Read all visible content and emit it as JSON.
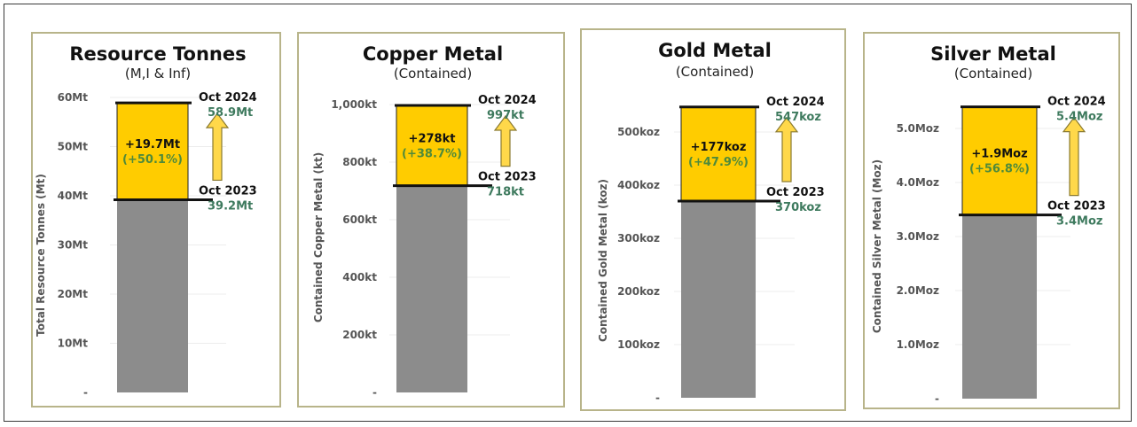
{
  "chart_data": [
    {
      "type": "bar",
      "title": "Resource Tonnes",
      "subtitle": "(M,I & Inf)",
      "ylabel": "Total Resource Tonnes (Mt)",
      "ylim": [
        0,
        60
      ],
      "yticks": [
        "-",
        "10Mt",
        "20Mt",
        "30Mt",
        "40Mt",
        "50Mt",
        "60Mt"
      ],
      "series": [
        {
          "name": "Oct 2023",
          "value": 39.2,
          "label": "39.2Mt",
          "color": "#8c8c8c"
        },
        {
          "name": "Oct 2024",
          "value": 58.9,
          "label": "58.9Mt",
          "color": "#ffcc00"
        }
      ],
      "increase_label": "+19.7Mt",
      "increase_pct": "(+50.1%)"
    },
    {
      "type": "bar",
      "title": "Copper Metal",
      "subtitle": "(Contained)",
      "ylabel": "Contained Copper Metal (kt)",
      "ylim": [
        0,
        1000
      ],
      "yticks": [
        "-",
        "200kt",
        "400kt",
        "600kt",
        "800kt",
        "1,000kt"
      ],
      "series": [
        {
          "name": "Oct 2023",
          "value": 718,
          "label": "718kt",
          "color": "#8c8c8c"
        },
        {
          "name": "Oct 2024",
          "value": 997,
          "label": "997kt",
          "color": "#ffcc00"
        }
      ],
      "increase_label": "+278kt",
      "increase_pct": "(+38.7%)"
    },
    {
      "type": "bar",
      "title": "Gold Metal",
      "subtitle": "(Contained)",
      "ylabel": "Contained Gold Metal (koz)",
      "ylim": [
        0,
        600
      ],
      "yticks": [
        "-",
        "100koz",
        "200koz",
        "300koz",
        "400koz",
        "500koz"
      ],
      "series": [
        {
          "name": "Oct 2023",
          "value": 370,
          "label": "370koz",
          "color": "#8c8c8c"
        },
        {
          "name": "Oct 2024",
          "value": 547,
          "label": "547koz",
          "color": "#ffcc00"
        }
      ],
      "increase_label": "+177koz",
      "increase_pct": "(+47.9%)"
    },
    {
      "type": "bar",
      "title": "Silver Metal",
      "subtitle": "(Contained)",
      "ylabel": "Contained Silver Metal (Moz)",
      "ylim": [
        0,
        6
      ],
      "yticks": [
        "-",
        "1.0Moz",
        "2.0Moz",
        "3.0Moz",
        "4.0Moz",
        "5.0Moz"
      ],
      "series": [
        {
          "name": "Oct 2023",
          "value": 3.4,
          "label": "3.4Moz",
          "color": "#8c8c8c"
        },
        {
          "name": "Oct 2024",
          "value": 5.4,
          "label": "5.4Moz",
          "color": "#ffcc00"
        }
      ],
      "increase_label": "+1.9Moz",
      "increase_pct": "(+56.8%)"
    }
  ]
}
